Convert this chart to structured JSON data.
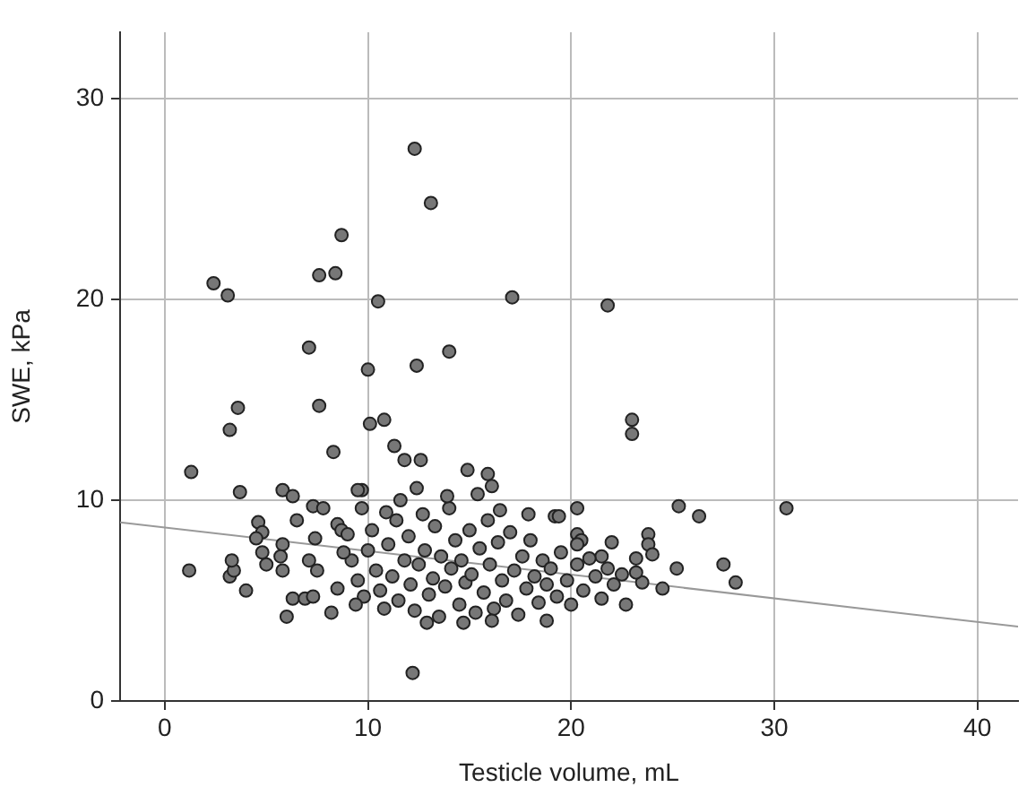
{
  "chart_data": {
    "type": "scatter",
    "xlabel": "Testicle volume, mL",
    "ylabel": "SWE, kPa",
    "xlim": [
      -2.2,
      42
    ],
    "xticks": [
      0,
      10,
      20,
      30,
      40
    ],
    "ylim": [
      0,
      33.3
    ],
    "yticks": [
      0,
      10,
      20,
      30
    ],
    "grid": true,
    "series": [
      {
        "type": "scatter",
        "marker": "circle",
        "color": "#777777",
        "x": [
          12.3,
          13.1,
          2.4,
          3.1,
          8.7,
          7.6,
          8.4,
          10.5,
          17.1,
          21.8,
          7.1,
          14.0,
          12.4,
          10.0,
          3.6,
          3.2,
          7.6,
          10.1,
          10.8,
          8.3,
          11.3,
          11.8,
          12.6,
          1.3,
          14.9,
          15.9,
          23.0,
          23.0,
          25.3,
          26.3,
          30.6,
          27.5,
          28.1,
          25.2,
          24.5,
          23.5,
          23.8,
          23.8,
          24.0,
          23.2,
          23.2,
          22.7,
          22.0,
          21.5,
          20.3,
          19.2,
          19.4,
          20.3,
          20.5,
          20.3,
          18.8,
          16.1,
          1.2,
          12.2,
          4.0,
          3.2,
          3.4,
          3.3,
          6.0,
          8.2,
          3.7,
          5.8,
          6.3,
          4.6,
          4.8,
          4.5,
          4.8,
          5.0,
          5.8,
          6.3,
          6.9,
          7.3,
          6.5,
          7.3,
          7.8,
          8.5,
          8.7,
          7.4,
          7.1,
          7.5,
          5.8,
          5.7,
          9.7,
          9.5,
          9.7,
          9.2,
          9.5,
          9.8,
          10.0,
          10.2,
          10.4,
          10.6,
          10.8,
          11.0,
          11.2,
          11.4,
          11.5,
          11.8,
          12.0,
          12.1,
          12.3,
          12.5,
          12.7,
          12.8,
          13.0,
          13.2,
          13.3,
          13.5,
          13.6,
          13.8,
          14.0,
          14.1,
          14.3,
          14.5,
          14.6,
          14.8,
          15.0,
          15.1,
          15.3,
          15.5,
          15.7,
          15.9,
          16.0,
          16.2,
          16.4,
          16.6,
          16.8,
          17.0,
          17.2,
          17.4,
          17.6,
          17.8,
          18.0,
          18.2,
          18.4,
          18.6,
          18.8,
          19.0,
          19.3,
          19.5,
          19.8,
          20.0,
          20.3,
          20.6,
          20.9,
          21.2,
          21.5,
          21.8,
          22.1,
          22.5,
          8.8,
          8.5,
          9.0,
          9.4,
          10.9,
          13.9,
          12.4,
          11.6,
          15.4,
          16.5,
          17.9,
          14.7,
          16.1,
          12.9
        ],
        "values": [
          27.5,
          24.8,
          20.8,
          20.2,
          23.2,
          21.2,
          21.3,
          19.9,
          20.1,
          19.7,
          17.6,
          17.4,
          16.7,
          16.5,
          14.6,
          13.5,
          14.7,
          13.8,
          14.0,
          12.4,
          12.7,
          12.0,
          12.0,
          11.4,
          11.5,
          11.3,
          14.0,
          13.3,
          9.7,
          9.2,
          9.6,
          6.8,
          5.9,
          6.6,
          5.6,
          5.9,
          8.3,
          7.8,
          7.3,
          7.1,
          6.4,
          4.8,
          7.9,
          7.2,
          9.6,
          9.2,
          9.2,
          8.3,
          8.0,
          7.8,
          4.0,
          10.7,
          6.5,
          1.4,
          5.5,
          6.2,
          6.5,
          7.0,
          4.2,
          4.4,
          10.4,
          10.5,
          10.2,
          8.9,
          8.4,
          8.1,
          7.4,
          6.8,
          6.5,
          5.1,
          5.1,
          5.2,
          9.0,
          9.7,
          9.6,
          8.8,
          8.5,
          8.1,
          7.0,
          6.5,
          7.8,
          7.2,
          10.5,
          10.5,
          9.6,
          7.0,
          6.0,
          5.2,
          7.5,
          8.5,
          6.5,
          5.5,
          4.6,
          7.8,
          6.2,
          9.0,
          5.0,
          7.0,
          8.2,
          5.8,
          4.5,
          6.8,
          9.3,
          7.5,
          5.3,
          6.1,
          8.7,
          4.2,
          7.2,
          5.7,
          9.6,
          6.6,
          8.0,
          4.8,
          7.0,
          5.9,
          8.5,
          6.3,
          4.4,
          7.6,
          5.4,
          9.0,
          6.8,
          4.6,
          7.9,
          6.0,
          5.0,
          8.4,
          6.5,
          4.3,
          7.2,
          5.6,
          8.0,
          6.2,
          4.9,
          7.0,
          5.8,
          6.6,
          5.2,
          7.4,
          6.0,
          4.8,
          6.8,
          5.5,
          7.1,
          6.2,
          5.1,
          6.6,
          5.8,
          6.3,
          7.4,
          5.6,
          8.3,
          4.8,
          9.4,
          10.2,
          10.6,
          10.0,
          10.3,
          9.5,
          9.3,
          3.9,
          4.0,
          3.9
        ]
      },
      {
        "type": "line",
        "marker": "none",
        "color": "#999999",
        "x": [
          -2.2,
          42
        ],
        "values": [
          8.9,
          3.7
        ]
      }
    ]
  }
}
